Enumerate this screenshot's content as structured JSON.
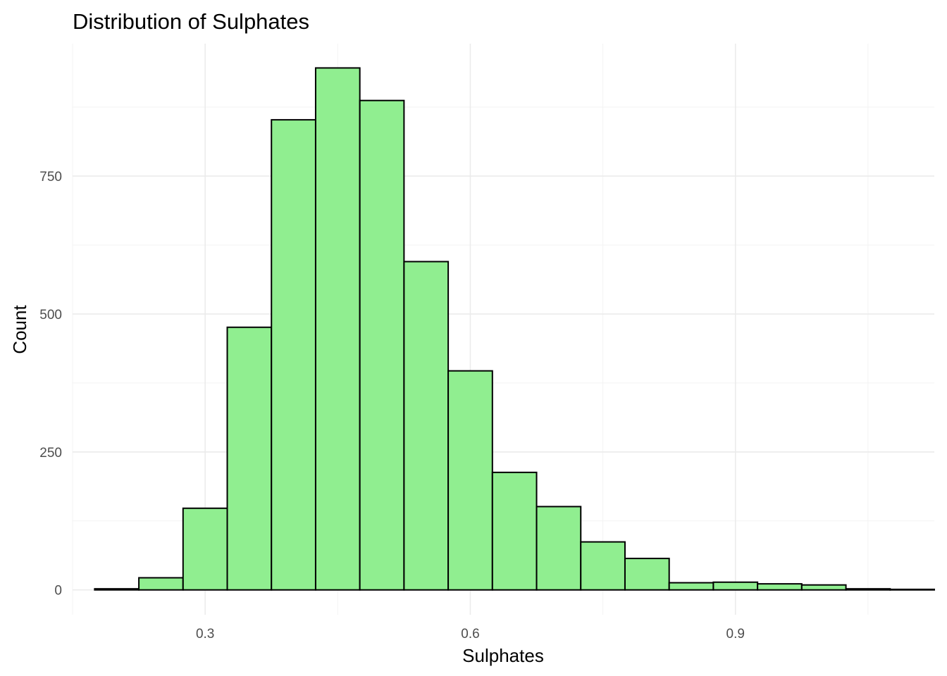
{
  "chart_data": {
    "type": "bar",
    "title": "Distribution of Sulphates",
    "xlabel": "Sulphates",
    "ylabel": "Count",
    "bar_fill": "#90EE90",
    "bar_outline": "#000000",
    "bin_width": 0.05,
    "bin_centers": [
      0.2,
      0.25,
      0.3,
      0.35,
      0.4,
      0.45,
      0.5,
      0.55,
      0.6,
      0.65,
      0.7,
      0.75,
      0.8,
      0.85,
      0.9,
      0.95,
      1.0,
      1.05,
      1.1
    ],
    "values": [
      2,
      22,
      148,
      476,
      852,
      946,
      887,
      595,
      397,
      213,
      151,
      87,
      57,
      13,
      14,
      11,
      9,
      2,
      1
    ],
    "xlim": [
      0.15,
      1.125
    ],
    "ylim": [
      -45,
      990
    ],
    "x_ticks": [
      0.3,
      0.6,
      0.9
    ],
    "x_tick_labels": [
      "0.3",
      "0.6",
      "0.9"
    ],
    "y_ticks": [
      0,
      250,
      500,
      750
    ],
    "y_tick_labels": [
      "0",
      "250",
      "500",
      "750"
    ],
    "grid": true,
    "legend": "none"
  }
}
